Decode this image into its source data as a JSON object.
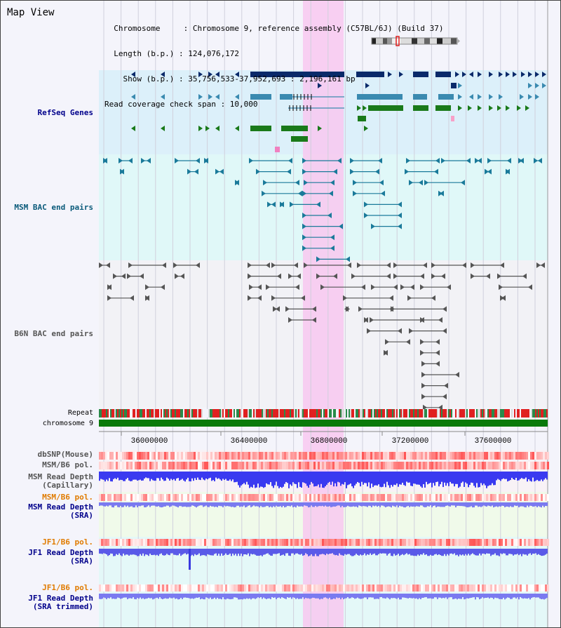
{
  "header": {
    "title": "Map View",
    "info_lines": [
      "  Chromosome     : Chromosome 9, reference assembly (C57BL/6J) (Build 37)",
      "  Length (b.p.) : 124,076,172",
      "    Show (b.p.) : 35,756,533-37,952,693 : 2,196,161 bp",
      "Read coverage check span : 10,000"
    ]
  },
  "tracks": {
    "refseq": {
      "label": "RefSeq Genes"
    },
    "msm_bac": {
      "label": "MSM BAC end pairs"
    },
    "b6n_bac": {
      "label": "B6N BAC end pairs"
    },
    "repeat": {
      "label": "Repeat"
    },
    "chromosome": {
      "label": "chromosome 9"
    },
    "dbsnp": {
      "label": "dbSNP(Mouse)"
    },
    "msm_b6_pol": {
      "label": "MSM/B6 pol."
    },
    "msm_depth_cap": {
      "label": "MSM Read Depth\n(Capillary)"
    },
    "msm_b6_pol2": {
      "label": "MSM/B6 pol."
    },
    "msm_depth_sra": {
      "label": "MSM Read Depth\n(SRA)"
    },
    "jf1_b6_pol": {
      "label": "JF1/B6 pol."
    },
    "jf1_depth_sra": {
      "label": "JF1 Read Depth\n(SRA)"
    },
    "jf1_b6_pol2": {
      "label": "JF1/B6 pol."
    },
    "jf1_depth_trim": {
      "label": "JF1 Read Depth\n(SRA trimmed)"
    }
  },
  "axis": {
    "ticks": [
      "36000000",
      "36400000",
      "36800000",
      "37200000",
      "37600000"
    ]
  },
  "colors": {
    "refseq_bg": "#dcf0fa",
    "msm_bac_bg": "#e0f8f8",
    "highlight": "#f8c8f0",
    "refseq_dark": "#0a2a6a",
    "refseq_mid": "#3a8ab0",
    "refseq_green": "#1a7a1a",
    "chromosome_green": "#0a7a0a",
    "depth_blue": "#1a1ae0",
    "label_navy": "#00008b",
    "label_orange": "#e07b00",
    "label_teal": "#0a5a7a"
  }
}
